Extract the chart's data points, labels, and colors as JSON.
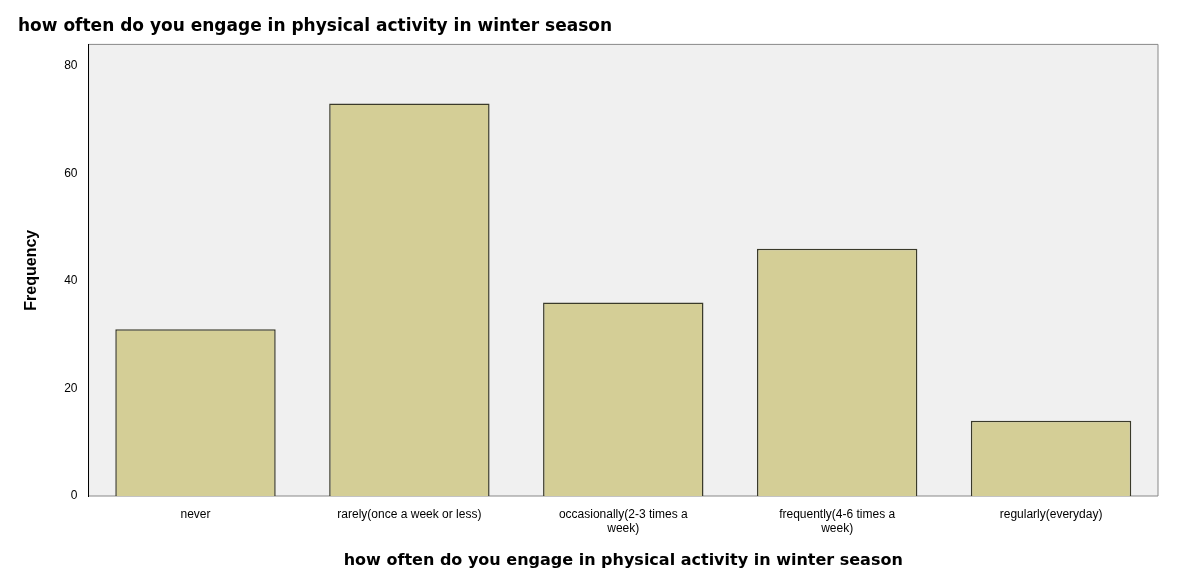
{
  "chart_data": {
    "type": "bar",
    "title": "how often do you engage in physical activity in winter season",
    "xlabel": "how often do you engage in physical activity in winter season",
    "ylabel": "Frequency",
    "categories": [
      "never",
      "rarely(once a week or less)",
      "occasionally(2-3 times a week)",
      "frequently(4-6 times a week)",
      "regularly(everyday)"
    ],
    "values": [
      31,
      73,
      36,
      46,
      14
    ],
    "color": "#d4ce96",
    "ylim": [
      0,
      84
    ],
    "yticks": [
      0,
      20,
      40,
      60,
      80
    ],
    "grid": false,
    "legend": false
  }
}
